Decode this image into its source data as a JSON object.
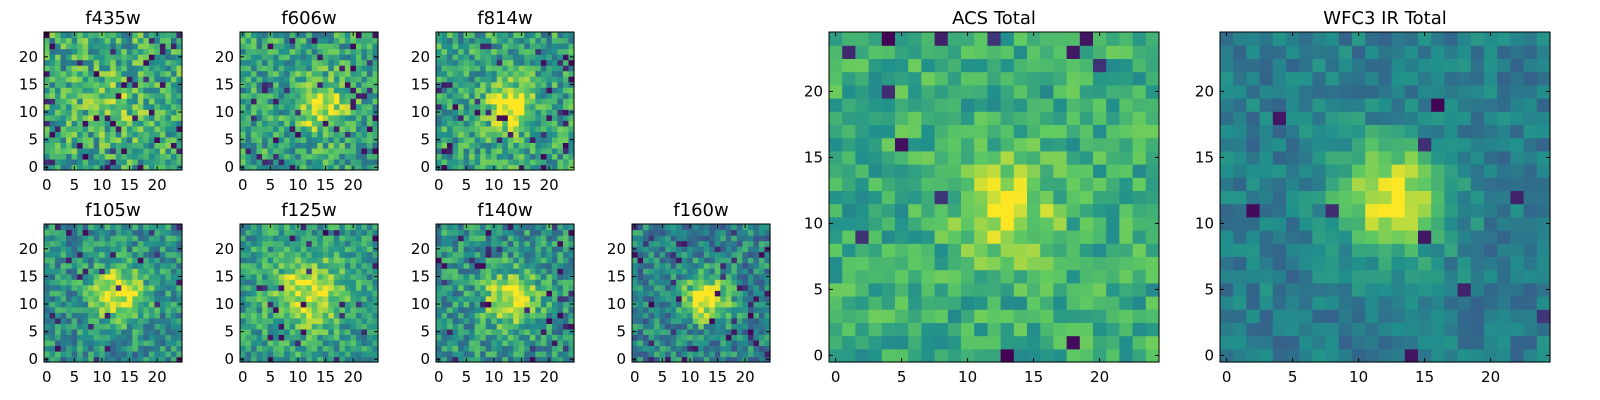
{
  "chart_data": [
    {
      "type": "heatmap",
      "title": "f435w",
      "size": 25,
      "seed": 11,
      "blob": {
        "x": 12,
        "y": 12,
        "sigma": 4,
        "amp": 0.15
      },
      "noise": 0.5,
      "base": 0.6,
      "dark_fraction": 0.07,
      "x_ticks": [
        0,
        5,
        10,
        15,
        20
      ],
      "y_ticks": [
        0,
        5,
        10,
        15,
        20
      ],
      "xlim": [
        0,
        24
      ],
      "ylim": [
        0,
        24
      ]
    },
    {
      "type": "heatmap",
      "title": "f606w",
      "size": 25,
      "seed": 23,
      "blob": {
        "x": 14,
        "y": 11,
        "sigma": 3.5,
        "amp": 0.35
      },
      "noise": 0.45,
      "base": 0.58,
      "dark_fraction": 0.06,
      "x_ticks": [
        0,
        5,
        10,
        15,
        20
      ],
      "y_ticks": [
        0,
        5,
        10,
        15,
        20
      ],
      "xlim": [
        0,
        24
      ],
      "ylim": [
        0,
        24
      ]
    },
    {
      "type": "heatmap",
      "title": "f814w",
      "size": 25,
      "seed": 37,
      "blob": {
        "x": 13,
        "y": 11,
        "sigma": 3,
        "amp": 0.45
      },
      "noise": 0.45,
      "base": 0.58,
      "dark_fraction": 0.06,
      "x_ticks": [
        0,
        5,
        10,
        15,
        20
      ],
      "y_ticks": [
        0,
        5,
        10,
        15,
        20
      ],
      "xlim": [
        0,
        24
      ],
      "ylim": [
        0,
        24
      ]
    },
    {
      "type": "heatmap",
      "title": "f105w",
      "size": 25,
      "seed": 41,
      "blob": {
        "x": 13,
        "y": 12,
        "sigma": 3.5,
        "amp": 0.5
      },
      "noise": 0.4,
      "base": 0.5,
      "dark_fraction": 0.05,
      "x_ticks": [
        0,
        5,
        10,
        15,
        20
      ],
      "y_ticks": [
        0,
        5,
        10,
        15,
        20
      ],
      "xlim": [
        0,
        24
      ],
      "ylim": [
        0,
        24
      ]
    },
    {
      "type": "heatmap",
      "title": "f125w",
      "size": 25,
      "seed": 53,
      "blob": {
        "x": 12,
        "y": 12,
        "sigma": 4.5,
        "amp": 0.4
      },
      "noise": 0.4,
      "base": 0.55,
      "dark_fraction": 0.05,
      "x_ticks": [
        0,
        5,
        10,
        15,
        20
      ],
      "y_ticks": [
        0,
        5,
        10,
        15,
        20
      ],
      "xlim": [
        0,
        24
      ],
      "ylim": [
        0,
        24
      ]
    },
    {
      "type": "heatmap",
      "title": "f140w",
      "size": 25,
      "seed": 67,
      "blob": {
        "x": 13,
        "y": 11,
        "sigma": 3.5,
        "amp": 0.45
      },
      "noise": 0.42,
      "base": 0.52,
      "dark_fraction": 0.05,
      "x_ticks": [
        0,
        5,
        10,
        15,
        20
      ],
      "y_ticks": [
        0,
        5,
        10,
        15,
        20
      ],
      "xlim": [
        0,
        24
      ],
      "ylim": [
        0,
        24
      ]
    },
    {
      "type": "heatmap",
      "title": "f160w",
      "size": 25,
      "seed": 79,
      "blob": {
        "x": 13,
        "y": 11,
        "sigma": 3,
        "amp": 0.55
      },
      "noise": 0.42,
      "base": 0.45,
      "dark_fraction": 0.07,
      "x_ticks": [
        0,
        5,
        10,
        15,
        20
      ],
      "y_ticks": [
        0,
        5,
        10,
        15,
        20
      ],
      "xlim": [
        0,
        24
      ],
      "ylim": [
        0,
        24
      ]
    },
    {
      "type": "heatmap",
      "title": "ACS Total",
      "size": 25,
      "seed": 97,
      "blob": {
        "x": 13,
        "y": 11,
        "sigma": 2.5,
        "amp": 0.35
      },
      "noise": 0.32,
      "base": 0.62,
      "dark_fraction": 0.025,
      "x_ticks": [
        0,
        5,
        10,
        15,
        20
      ],
      "y_ticks": [
        0,
        5,
        10,
        15,
        20
      ],
      "xlim": [
        0,
        24
      ],
      "ylim": [
        0,
        24
      ]
    },
    {
      "type": "heatmap",
      "title": "WFC3 IR Total",
      "size": 25,
      "seed": 131,
      "blob": {
        "x": 12.5,
        "y": 12,
        "sigma": 3,
        "amp": 0.55
      },
      "noise": 0.22,
      "base": 0.42,
      "dark_fraction": 0.025,
      "x_ticks": [
        0,
        5,
        10,
        15,
        20
      ],
      "y_ticks": [
        0,
        5,
        10,
        15,
        20
      ],
      "xlim": [
        0,
        24
      ],
      "ylim": [
        0,
        24
      ]
    }
  ],
  "colormap": [
    "#440154",
    "#3b528b",
    "#21918c",
    "#5ec962",
    "#fde725"
  ]
}
